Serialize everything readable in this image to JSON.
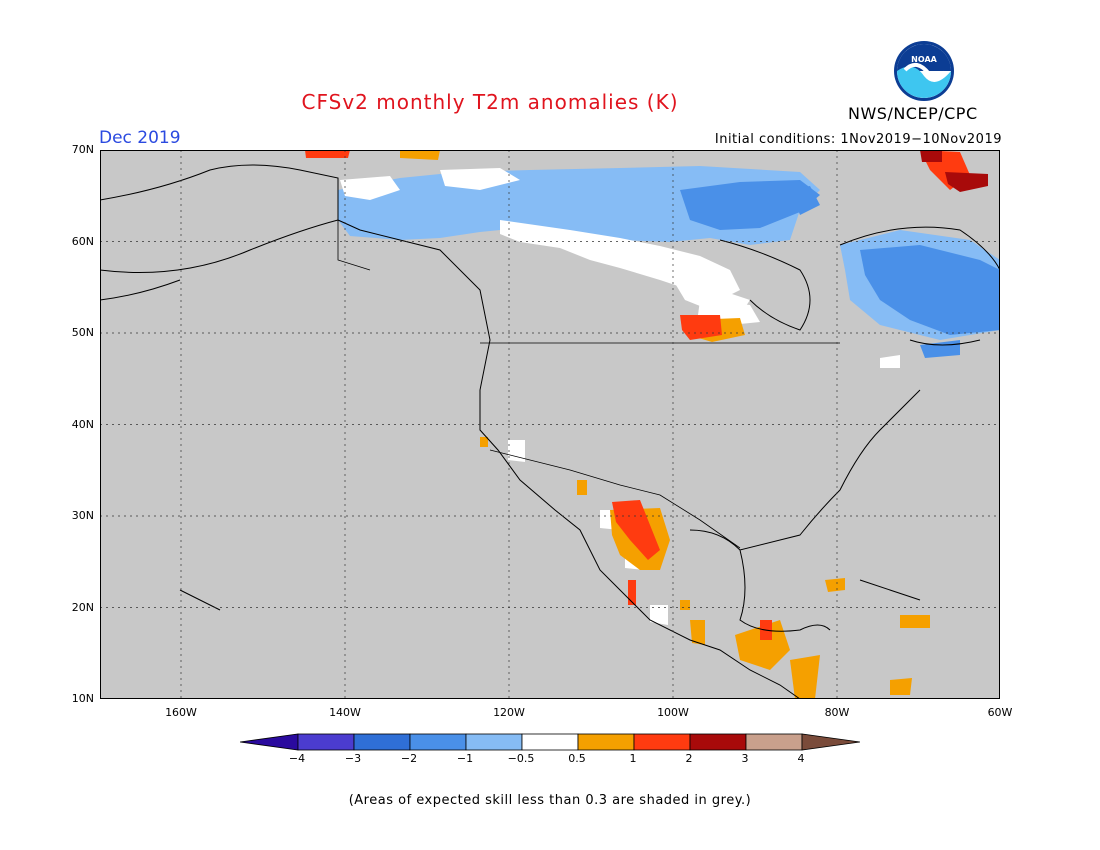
{
  "title": "CFSv2 monthly T2m anomalies (K)",
  "period": "Dec 2019",
  "initial_conditions": "Initial conditions: 1Nov2019−10Nov2019",
  "agency": "NWS/NCEP/CPC",
  "logo_text": "NOAA",
  "footnote": "(Areas of expected skill less than 0.3 are shaded in grey.)",
  "map": {
    "background_color": "#c8c8c8",
    "lat_labels": [
      "70N",
      "60N",
      "50N",
      "40N",
      "30N",
      "20N",
      "10N"
    ],
    "lon_labels": [
      "160W",
      "140W",
      "120W",
      "100W",
      "80W",
      "60W"
    ],
    "lat_range": [
      10,
      70
    ],
    "lon_range": [
      -171,
      -60
    ],
    "gridlines": "dotted"
  },
  "colorbar": {
    "labels": [
      "−4",
      "−3",
      "−2",
      "−1",
      "−0.5",
      "0.5",
      "1",
      "2",
      "3",
      "4"
    ],
    "colors": [
      "#2a0a9e",
      "#4b3ccf",
      "#2f6fd6",
      "#4a90e8",
      "#86bcf5",
      "#ffffff",
      "#f5a000",
      "#ff3b10",
      "#a80a0a",
      "#c9a08c",
      "#7a4b3a"
    ]
  },
  "anomaly_regions": [
    {
      "name": "northern-canada-cool",
      "level": "-1",
      "color": "#86bcf5"
    },
    {
      "name": "hudson-bay-cool",
      "level": "-2",
      "color": "#4a90e8"
    },
    {
      "name": "labrador-cool",
      "level": "-2",
      "color": "#4a90e8"
    },
    {
      "name": "baffin-warm",
      "level": "2",
      "color": "#ff3b10"
    },
    {
      "name": "mexico-warm",
      "level": "1",
      "color": "#f5a000"
    },
    {
      "name": "central-america-warm",
      "level": "0.5",
      "color": "#f5a000"
    }
  ]
}
